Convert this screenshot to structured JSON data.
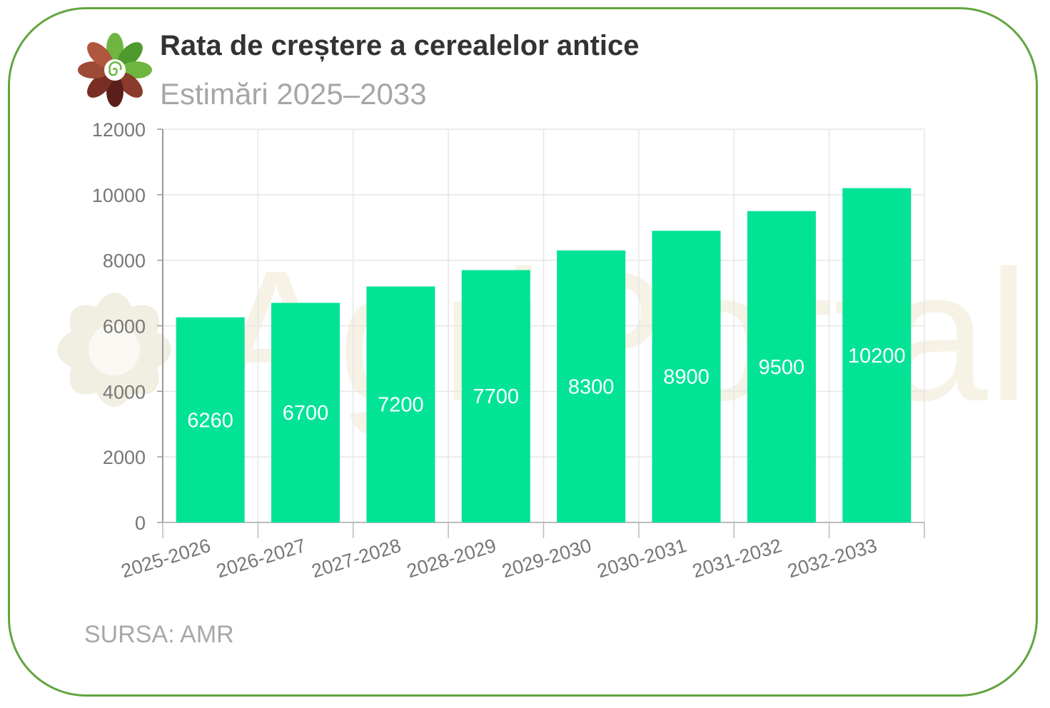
{
  "header": {
    "title": "Rata de creștere a cerealelor antice",
    "subtitle": "Estimări 2025–2033"
  },
  "footer": {
    "source": "SURSA: AMR"
  },
  "watermark": {
    "text": "AgriPortal"
  },
  "colors": {
    "bar": "#03e396",
    "frame": "#62a53f",
    "grid": "#e6e6e6",
    "axis_text": "#777777",
    "bar_label": "#ffffff"
  },
  "chart_data": {
    "type": "bar",
    "categories": [
      "2025-2026",
      "2026-2027",
      "2027-2028",
      "2028-2029",
      "2029-2030",
      "2030-2031",
      "2031-2032",
      "2032-2033"
    ],
    "values": [
      6260,
      6700,
      7200,
      7700,
      8300,
      8900,
      9500,
      10200
    ],
    "data_labels": [
      "6260",
      "6700",
      "7200",
      "7700",
      "8300",
      "8900",
      "9500",
      "10200"
    ],
    "ylim": [
      0,
      12000
    ],
    "yticks": [
      0,
      2000,
      4000,
      6000,
      8000,
      10000,
      12000
    ],
    "grid": true,
    "legend": "none"
  }
}
